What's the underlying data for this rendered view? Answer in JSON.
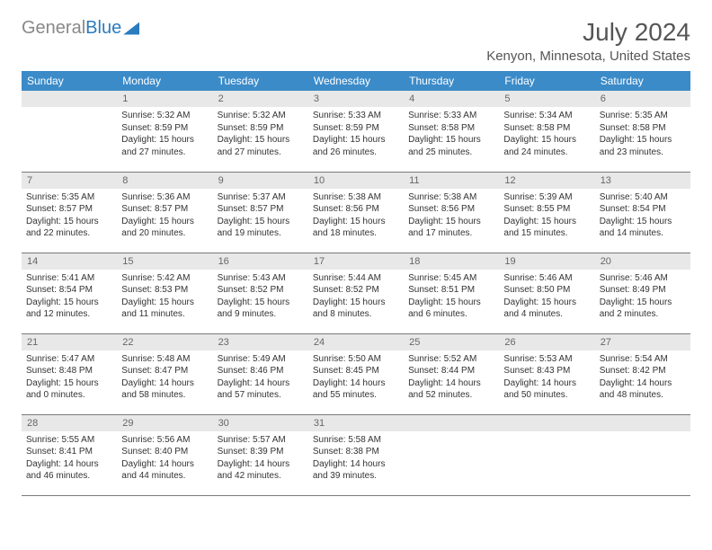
{
  "logo": {
    "general": "General",
    "blue": "Blue"
  },
  "header": {
    "month": "July 2024",
    "location": "Kenyon, Minnesota, United States"
  },
  "weekdays": [
    "Sunday",
    "Monday",
    "Tuesday",
    "Wednesday",
    "Thursday",
    "Friday",
    "Saturday"
  ],
  "colors": {
    "header_bg": "#3b8bc9",
    "num_bg": "#e8e8e8",
    "border": "#7a7a7a"
  },
  "weeks": [
    [
      {},
      {
        "n": "1",
        "sr": "Sunrise: 5:32 AM",
        "ss": "Sunset: 8:59 PM",
        "d1": "Daylight: 15 hours",
        "d2": "and 27 minutes."
      },
      {
        "n": "2",
        "sr": "Sunrise: 5:32 AM",
        "ss": "Sunset: 8:59 PM",
        "d1": "Daylight: 15 hours",
        "d2": "and 27 minutes."
      },
      {
        "n": "3",
        "sr": "Sunrise: 5:33 AM",
        "ss": "Sunset: 8:59 PM",
        "d1": "Daylight: 15 hours",
        "d2": "and 26 minutes."
      },
      {
        "n": "4",
        "sr": "Sunrise: 5:33 AM",
        "ss": "Sunset: 8:58 PM",
        "d1": "Daylight: 15 hours",
        "d2": "and 25 minutes."
      },
      {
        "n": "5",
        "sr": "Sunrise: 5:34 AM",
        "ss": "Sunset: 8:58 PM",
        "d1": "Daylight: 15 hours",
        "d2": "and 24 minutes."
      },
      {
        "n": "6",
        "sr": "Sunrise: 5:35 AM",
        "ss": "Sunset: 8:58 PM",
        "d1": "Daylight: 15 hours",
        "d2": "and 23 minutes."
      }
    ],
    [
      {
        "n": "7",
        "sr": "Sunrise: 5:35 AM",
        "ss": "Sunset: 8:57 PM",
        "d1": "Daylight: 15 hours",
        "d2": "and 22 minutes."
      },
      {
        "n": "8",
        "sr": "Sunrise: 5:36 AM",
        "ss": "Sunset: 8:57 PM",
        "d1": "Daylight: 15 hours",
        "d2": "and 20 minutes."
      },
      {
        "n": "9",
        "sr": "Sunrise: 5:37 AM",
        "ss": "Sunset: 8:57 PM",
        "d1": "Daylight: 15 hours",
        "d2": "and 19 minutes."
      },
      {
        "n": "10",
        "sr": "Sunrise: 5:38 AM",
        "ss": "Sunset: 8:56 PM",
        "d1": "Daylight: 15 hours",
        "d2": "and 18 minutes."
      },
      {
        "n": "11",
        "sr": "Sunrise: 5:38 AM",
        "ss": "Sunset: 8:56 PM",
        "d1": "Daylight: 15 hours",
        "d2": "and 17 minutes."
      },
      {
        "n": "12",
        "sr": "Sunrise: 5:39 AM",
        "ss": "Sunset: 8:55 PM",
        "d1": "Daylight: 15 hours",
        "d2": "and 15 minutes."
      },
      {
        "n": "13",
        "sr": "Sunrise: 5:40 AM",
        "ss": "Sunset: 8:54 PM",
        "d1": "Daylight: 15 hours",
        "d2": "and 14 minutes."
      }
    ],
    [
      {
        "n": "14",
        "sr": "Sunrise: 5:41 AM",
        "ss": "Sunset: 8:54 PM",
        "d1": "Daylight: 15 hours",
        "d2": "and 12 minutes."
      },
      {
        "n": "15",
        "sr": "Sunrise: 5:42 AM",
        "ss": "Sunset: 8:53 PM",
        "d1": "Daylight: 15 hours",
        "d2": "and 11 minutes."
      },
      {
        "n": "16",
        "sr": "Sunrise: 5:43 AM",
        "ss": "Sunset: 8:52 PM",
        "d1": "Daylight: 15 hours",
        "d2": "and 9 minutes."
      },
      {
        "n": "17",
        "sr": "Sunrise: 5:44 AM",
        "ss": "Sunset: 8:52 PM",
        "d1": "Daylight: 15 hours",
        "d2": "and 8 minutes."
      },
      {
        "n": "18",
        "sr": "Sunrise: 5:45 AM",
        "ss": "Sunset: 8:51 PM",
        "d1": "Daylight: 15 hours",
        "d2": "and 6 minutes."
      },
      {
        "n": "19",
        "sr": "Sunrise: 5:46 AM",
        "ss": "Sunset: 8:50 PM",
        "d1": "Daylight: 15 hours",
        "d2": "and 4 minutes."
      },
      {
        "n": "20",
        "sr": "Sunrise: 5:46 AM",
        "ss": "Sunset: 8:49 PM",
        "d1": "Daylight: 15 hours",
        "d2": "and 2 minutes."
      }
    ],
    [
      {
        "n": "21",
        "sr": "Sunrise: 5:47 AM",
        "ss": "Sunset: 8:48 PM",
        "d1": "Daylight: 15 hours",
        "d2": "and 0 minutes."
      },
      {
        "n": "22",
        "sr": "Sunrise: 5:48 AM",
        "ss": "Sunset: 8:47 PM",
        "d1": "Daylight: 14 hours",
        "d2": "and 58 minutes."
      },
      {
        "n": "23",
        "sr": "Sunrise: 5:49 AM",
        "ss": "Sunset: 8:46 PM",
        "d1": "Daylight: 14 hours",
        "d2": "and 57 minutes."
      },
      {
        "n": "24",
        "sr": "Sunrise: 5:50 AM",
        "ss": "Sunset: 8:45 PM",
        "d1": "Daylight: 14 hours",
        "d2": "and 55 minutes."
      },
      {
        "n": "25",
        "sr": "Sunrise: 5:52 AM",
        "ss": "Sunset: 8:44 PM",
        "d1": "Daylight: 14 hours",
        "d2": "and 52 minutes."
      },
      {
        "n": "26",
        "sr": "Sunrise: 5:53 AM",
        "ss": "Sunset: 8:43 PM",
        "d1": "Daylight: 14 hours",
        "d2": "and 50 minutes."
      },
      {
        "n": "27",
        "sr": "Sunrise: 5:54 AM",
        "ss": "Sunset: 8:42 PM",
        "d1": "Daylight: 14 hours",
        "d2": "and 48 minutes."
      }
    ],
    [
      {
        "n": "28",
        "sr": "Sunrise: 5:55 AM",
        "ss": "Sunset: 8:41 PM",
        "d1": "Daylight: 14 hours",
        "d2": "and 46 minutes."
      },
      {
        "n": "29",
        "sr": "Sunrise: 5:56 AM",
        "ss": "Sunset: 8:40 PM",
        "d1": "Daylight: 14 hours",
        "d2": "and 44 minutes."
      },
      {
        "n": "30",
        "sr": "Sunrise: 5:57 AM",
        "ss": "Sunset: 8:39 PM",
        "d1": "Daylight: 14 hours",
        "d2": "and 42 minutes."
      },
      {
        "n": "31",
        "sr": "Sunrise: 5:58 AM",
        "ss": "Sunset: 8:38 PM",
        "d1": "Daylight: 14 hours",
        "d2": "and 39 minutes."
      },
      {},
      {},
      {}
    ]
  ]
}
